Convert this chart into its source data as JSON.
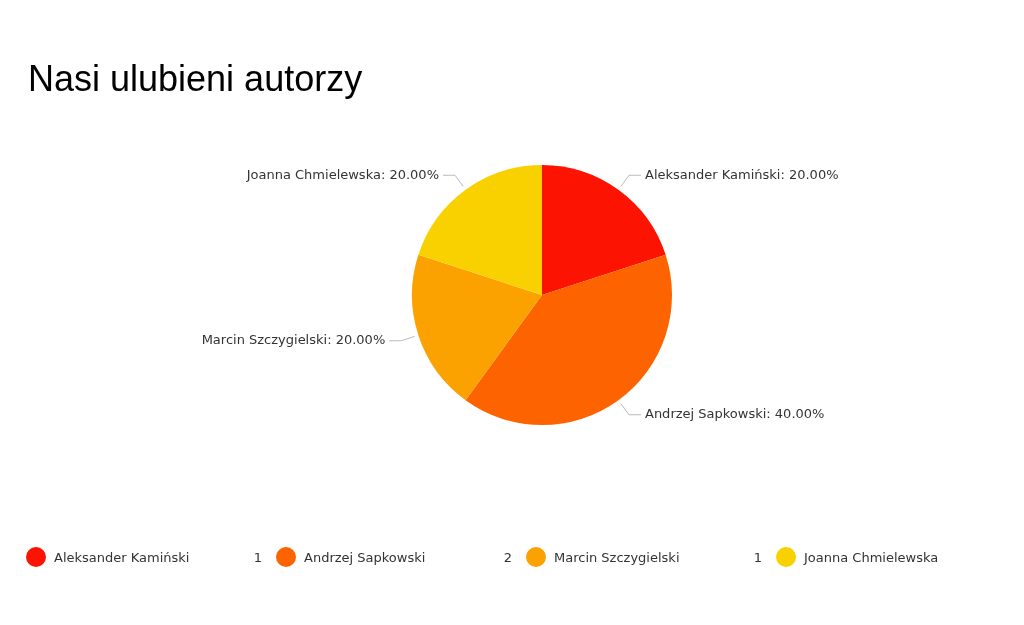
{
  "chart_data": {
    "type": "pie",
    "title": "Nasi ulubieni autorzy",
    "categories": [
      "Aleksander Kamiński",
      "Andrzej Sapkowski",
      "Marcin Szczygielski",
      "Joanna Chmielewska"
    ],
    "values": [
      20,
      40,
      20,
      20
    ],
    "colors": [
      "#fc1302",
      "#fd6400",
      "#fca200",
      "#f9d100"
    ],
    "value_labels": [
      "Aleksander Kamiński: 20.00%",
      "Andrzej Sapkowski: 40.00%",
      "Marcin Szczygielski: 20.00%",
      "Joanna Chmielewska: 20.00%"
    ],
    "annotations": [
      "1",
      "2",
      "1"
    ],
    "legend": "bottom"
  }
}
